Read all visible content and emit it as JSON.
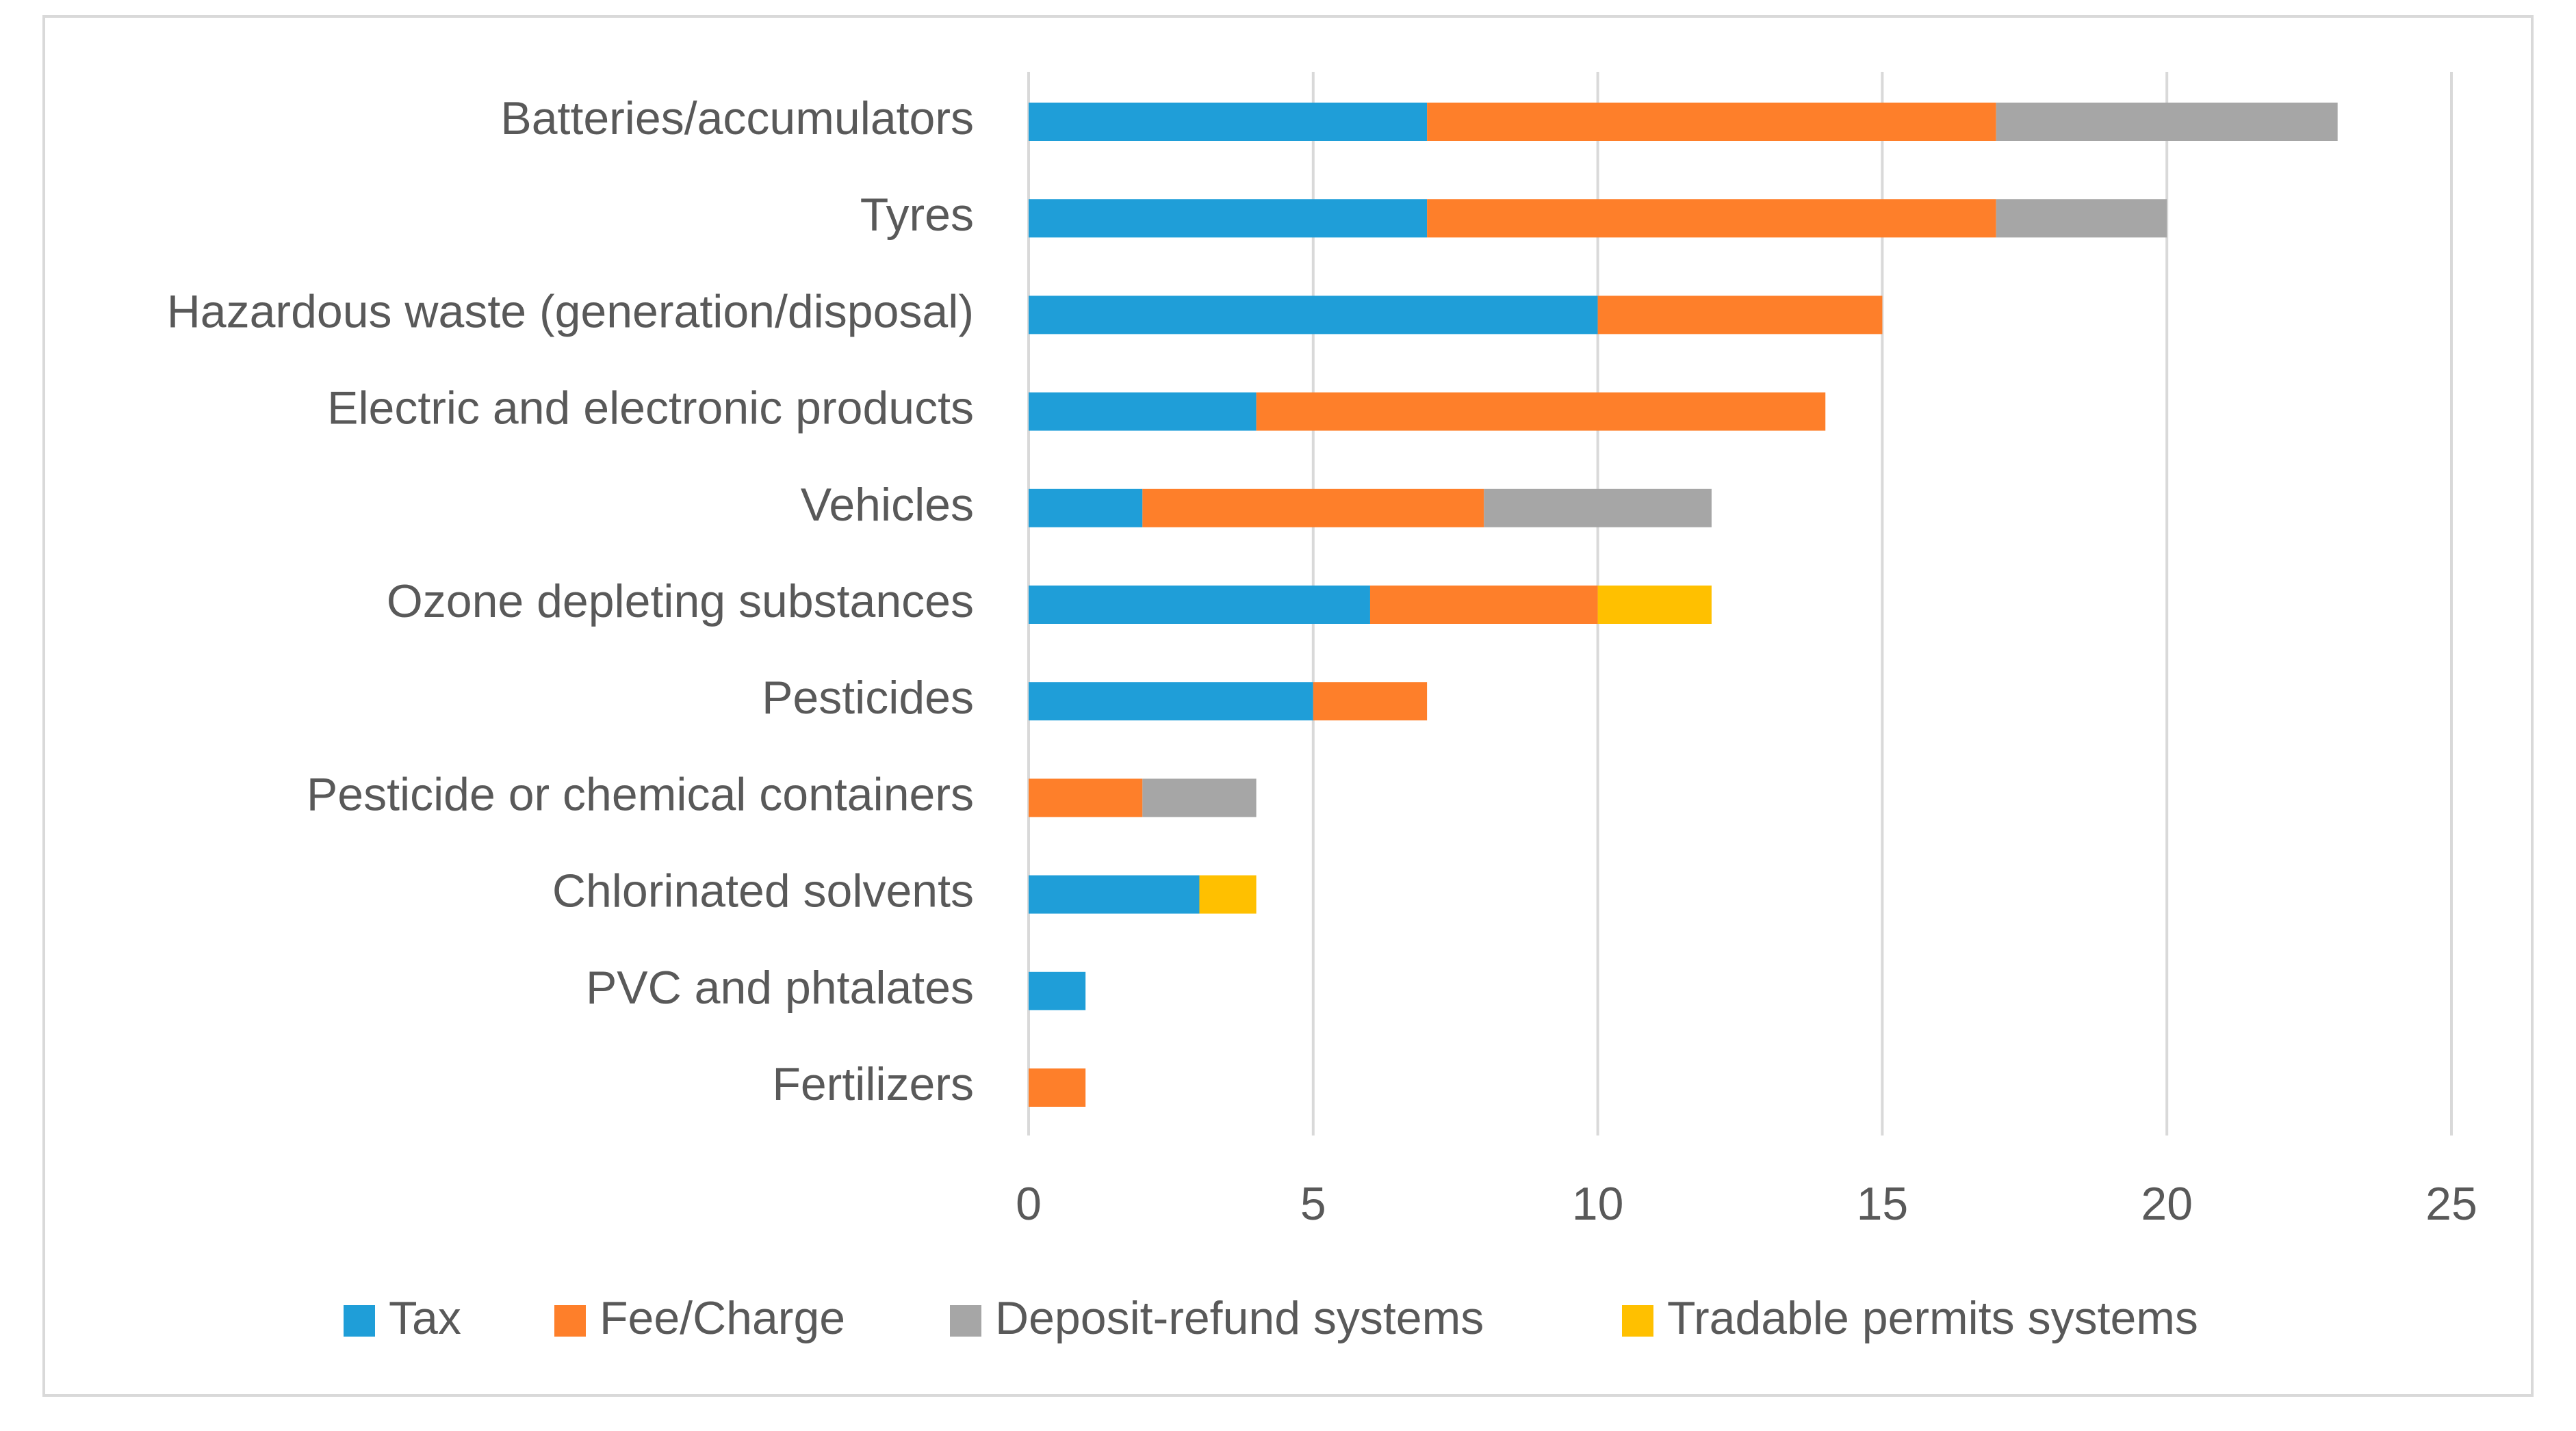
{
  "chart_data": {
    "type": "bar",
    "orientation": "horizontal",
    "stacked": true,
    "title": "",
    "xlabel": "",
    "ylabel": "",
    "xlim": [
      0,
      25
    ],
    "x_ticks": [
      0,
      5,
      10,
      15,
      20,
      25
    ],
    "grid": true,
    "legend_position": "bottom",
    "categories": [
      "Batteries/accumulators",
      "Tyres",
      "Hazardous waste (generation/disposal)",
      "Electric and electronic products",
      "Vehicles",
      "Ozone depleting substances",
      "Pesticides",
      "Pesticide or chemical containers",
      "Chlorinated solvents",
      "PVC and phtalates",
      "Fertilizers"
    ],
    "series": [
      {
        "name": "Tax",
        "color": "#1f9ed8",
        "values": [
          7,
          7,
          10,
          4,
          2,
          6,
          5,
          0,
          3,
          1,
          0
        ]
      },
      {
        "name": "Fee/Charge",
        "color": "#fe7f2a",
        "values": [
          10,
          10,
          5,
          10,
          6,
          4,
          2,
          2,
          0,
          0,
          1
        ]
      },
      {
        "name": "Deposit-refund systems",
        "color": "#a6a6a6",
        "values": [
          6,
          3,
          0,
          0,
          4,
          0,
          0,
          2,
          0,
          0,
          0
        ]
      },
      {
        "name": "Tradable permits systems",
        "color": "#ffc000",
        "values": [
          0,
          0,
          0,
          0,
          0,
          2,
          0,
          0,
          1,
          0,
          0
        ]
      }
    ]
  }
}
